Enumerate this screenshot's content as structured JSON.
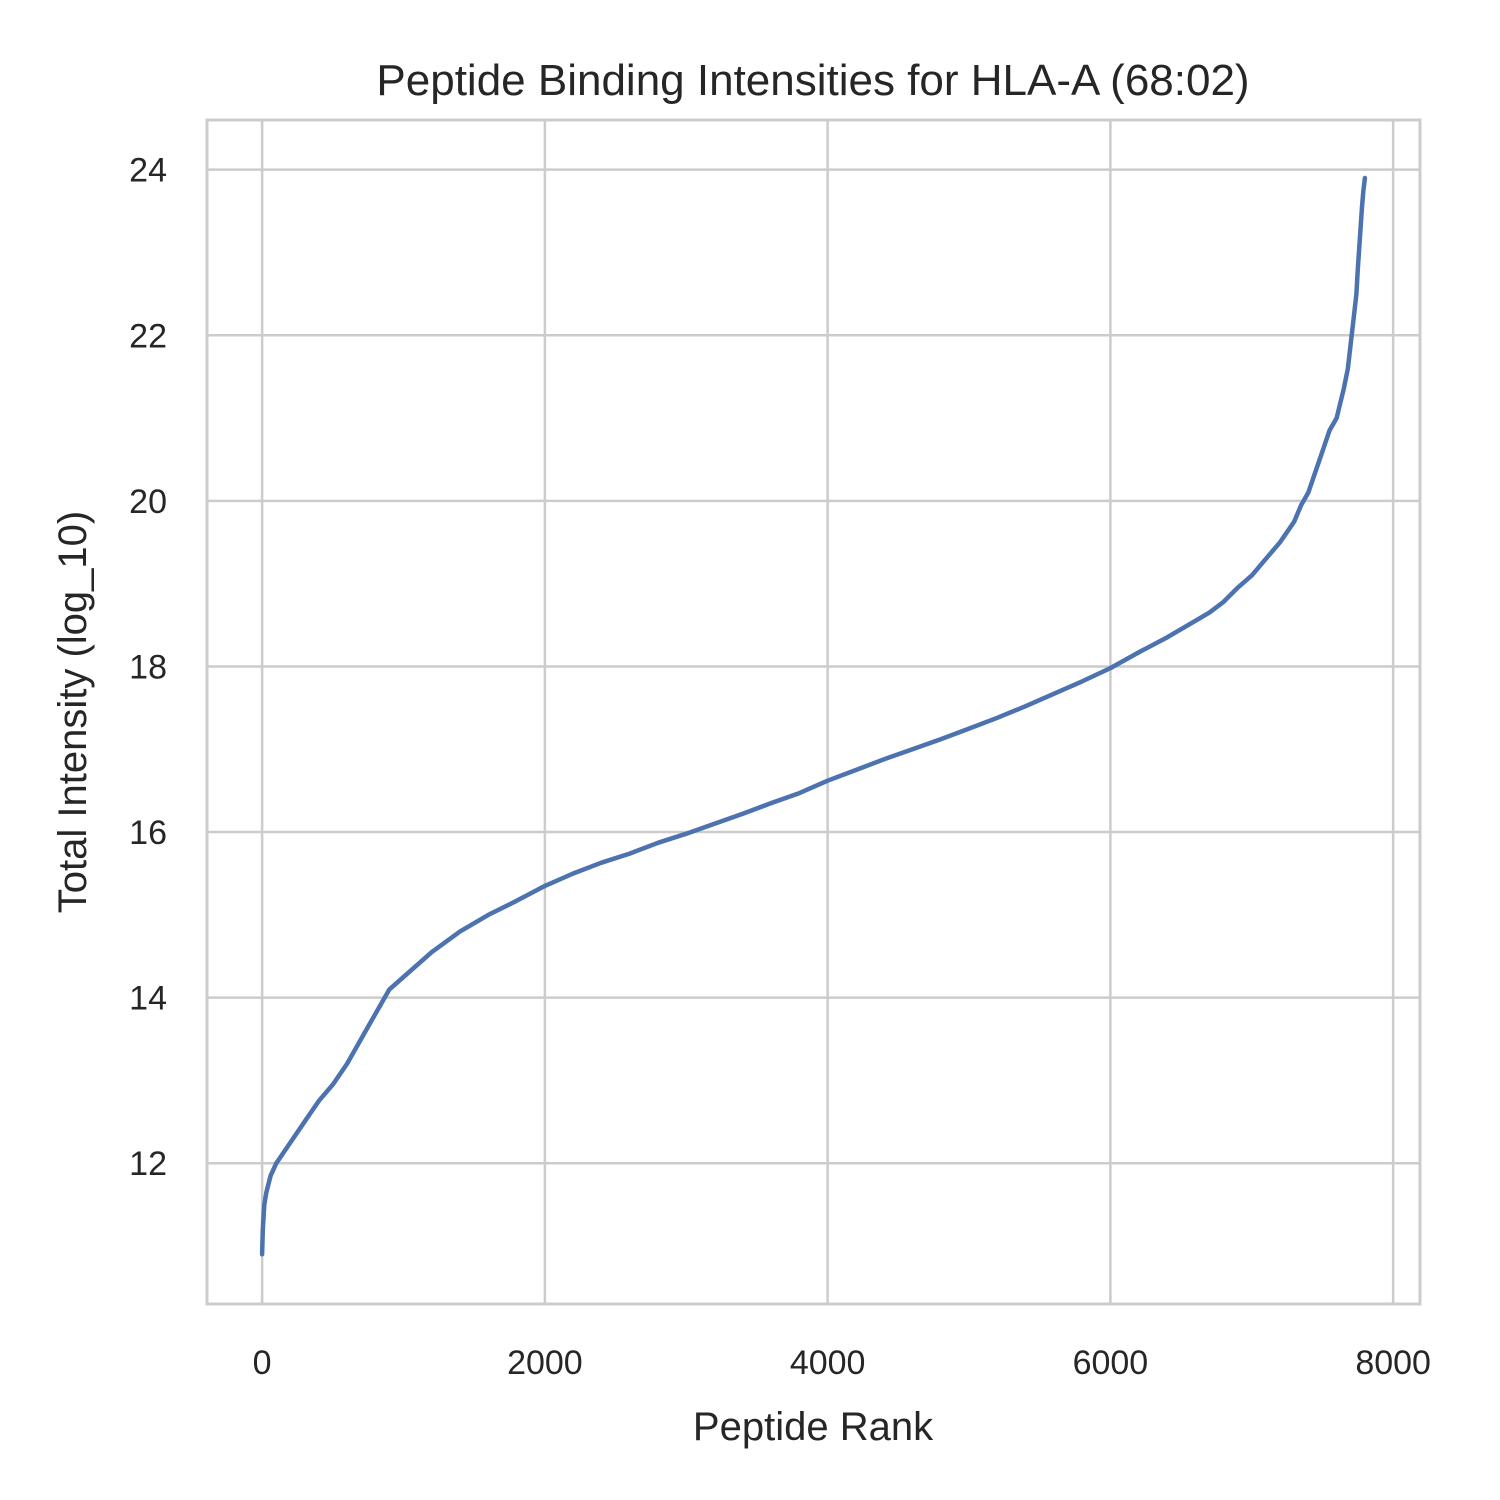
{
  "chart_data": {
    "type": "line",
    "title": "Peptide Binding Intensities for HLA-A (68:02)",
    "xlabel": "Peptide Rank",
    "ylabel": "Total Intensity (log_10)",
    "xlim": [
      -390,
      8190
    ],
    "ylim": [
      10.3,
      24.6
    ],
    "xticks": [
      0,
      2000,
      4000,
      6000,
      8000
    ],
    "yticks": [
      12,
      14,
      16,
      18,
      20,
      22,
      24
    ],
    "grid": true,
    "legend": "none",
    "series": [
      {
        "color": "#4c72b0",
        "x": [
          0,
          5,
          15,
          30,
          60,
          100,
          140,
          200,
          300,
          400,
          500,
          600,
          700,
          800,
          900,
          1000,
          1200,
          1400,
          1600,
          1800,
          2000,
          2200,
          2400,
          2600,
          2800,
          3000,
          3200,
          3400,
          3600,
          3800,
          4000,
          4200,
          4400,
          4600,
          4800,
          5000,
          5200,
          5400,
          5600,
          5800,
          6000,
          6200,
          6400,
          6600,
          6700,
          6800,
          6900,
          7000,
          7100,
          7200,
          7300,
          7350,
          7400,
          7450,
          7500,
          7550,
          7600,
          7650,
          7680,
          7700,
          7720,
          7740,
          7750,
          7760,
          7770,
          7780,
          7790,
          7800
        ],
        "values": [
          10.9,
          11.2,
          11.5,
          11.65,
          11.85,
          12.0,
          12.1,
          12.25,
          12.5,
          12.75,
          12.95,
          13.2,
          13.5,
          13.8,
          14.1,
          14.25,
          14.55,
          14.8,
          15.0,
          15.17,
          15.35,
          15.5,
          15.63,
          15.74,
          15.87,
          15.98,
          16.1,
          16.22,
          16.35,
          16.47,
          16.62,
          16.75,
          16.88,
          17.0,
          17.12,
          17.25,
          17.38,
          17.52,
          17.67,
          17.82,
          17.98,
          18.17,
          18.35,
          18.55,
          18.65,
          18.78,
          18.95,
          19.1,
          19.3,
          19.5,
          19.75,
          19.95,
          20.1,
          20.35,
          20.6,
          20.85,
          21.0,
          21.35,
          21.6,
          21.9,
          22.2,
          22.5,
          22.8,
          23.05,
          23.3,
          23.55,
          23.75,
          23.9
        ]
      }
    ]
  }
}
